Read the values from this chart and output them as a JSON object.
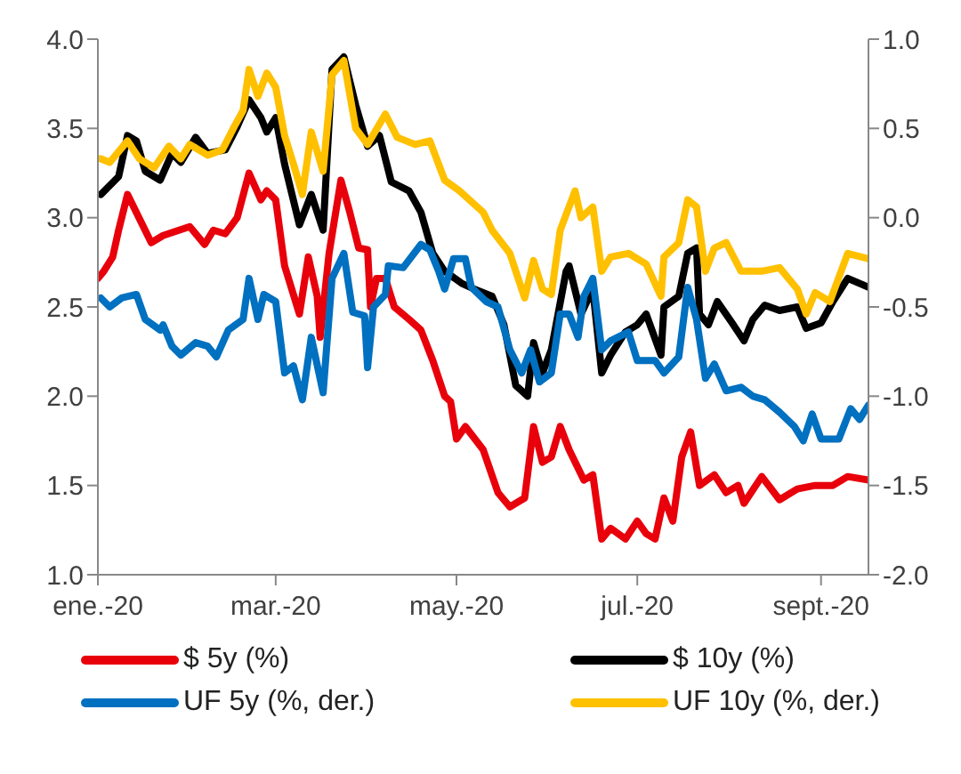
{
  "chart_data": {
    "type": "line",
    "legend": "bottom",
    "marker": "none",
    "xlim": [
      "2020-01-01",
      "2020-09-17"
    ],
    "xticks": [
      {
        "value": "2020-01-01",
        "label": "ene.-20"
      },
      {
        "value": "2020-03-01",
        "label": "mar.-20"
      },
      {
        "value": "2020-05-01",
        "label": "may.-20"
      },
      {
        "value": "2020-07-01",
        "label": "jul.-20"
      },
      {
        "value": "2020-09-01",
        "label": "sept.-20"
      }
    ],
    "ylim": [
      1,
      4
    ],
    "yticks": [
      {
        "value": 1,
        "label": "1.0"
      },
      1.5,
      {
        "value": 2,
        "label": "2.0"
      },
      2.5,
      {
        "value": 3,
        "label": "3.0"
      },
      3.5,
      {
        "value": 4,
        "label": "4.0"
      }
    ],
    "y2lim": [
      -2,
      1
    ],
    "y2ticks": [
      {
        "value": -2,
        "label": "-2.0"
      },
      -1.5,
      {
        "value": -1,
        "label": "-1.0"
      },
      -0.5,
      {
        "value": 0,
        "label": "0.0"
      },
      0.5,
      {
        "value": 1,
        "label": "1.0"
      }
    ],
    "series": [
      {
        "name": "$ 5y (%)",
        "color": "#e8000b",
        "x": [
          "2020-01-01",
          "2020-01-03",
          "2020-01-06",
          "2020-01-08",
          "2020-01-11",
          "2020-01-19",
          "2020-01-23",
          "2020-02-01",
          "2020-02-06",
          "2020-02-09",
          "2020-02-13",
          "2020-02-17",
          "2020-02-21",
          "2020-02-25",
          "2020-02-27",
          "2020-03-01",
          "2020-03-04",
          "2020-03-09",
          "2020-03-12",
          "2020-03-15",
          "2020-03-16",
          "2020-03-19",
          "2020-03-23",
          "2020-03-26",
          "2020-03-29",
          "2020-04-01",
          "2020-04-02",
          "2020-04-04",
          "2020-04-07",
          "2020-04-10",
          "2020-04-15",
          "2020-04-19",
          "2020-04-23",
          "2020-04-27",
          "2020-04-29",
          "2020-05-01",
          "2020-05-04",
          "2020-05-10",
          "2020-05-15",
          "2020-05-19",
          "2020-05-24",
          "2020-05-27",
          "2020-05-30",
          "2020-06-02",
          "2020-06-05",
          "2020-06-08",
          "2020-06-13",
          "2020-06-16",
          "2020-06-19",
          "2020-06-22",
          "2020-06-27",
          "2020-07-01",
          "2020-07-04",
          "2020-07-07",
          "2020-07-10",
          "2020-07-13",
          "2020-07-16",
          "2020-07-19",
          "2020-07-22",
          "2020-07-27",
          "2020-07-31",
          "2020-08-04",
          "2020-08-06",
          "2020-08-12",
          "2020-08-18",
          "2020-08-24",
          "2020-08-30",
          "2020-09-05",
          "2020-09-10",
          "2020-09-17"
        ],
        "values": [
          2.66,
          2.7,
          2.78,
          2.93,
          3.13,
          2.86,
          2.9,
          2.95,
          2.85,
          2.93,
          2.91,
          3.0,
          3.25,
          3.1,
          3.15,
          3.1,
          2.73,
          2.46,
          2.78,
          2.56,
          2.33,
          2.8,
          3.21,
          3.03,
          2.83,
          2.82,
          2.5,
          2.66,
          2.66,
          2.5,
          2.43,
          2.37,
          2.2,
          2.0,
          1.97,
          1.76,
          1.83,
          1.7,
          1.46,
          1.38,
          1.43,
          1.83,
          1.63,
          1.66,
          1.83,
          1.7,
          1.53,
          1.56,
          1.2,
          1.26,
          1.2,
          1.3,
          1.23,
          1.2,
          1.43,
          1.3,
          1.66,
          1.8,
          1.5,
          1.56,
          1.46,
          1.5,
          1.4,
          1.55,
          1.42,
          1.48,
          1.5,
          1.5,
          1.55,
          1.53
        ]
      },
      {
        "name": "$ 10y (%)",
        "color": "#000000",
        "x": [
          "2020-01-02",
          "2020-01-08",
          "2020-01-11",
          "2020-01-14",
          "2020-01-17",
          "2020-01-22",
          "2020-01-26",
          "2020-01-29",
          "2020-02-03",
          "2020-02-07",
          "2020-02-13",
          "2020-02-17",
          "2020-02-21",
          "2020-02-25",
          "2020-02-27",
          "2020-03-01",
          "2020-03-04",
          "2020-03-09",
          "2020-03-13",
          "2020-03-17",
          "2020-03-20",
          "2020-03-24",
          "2020-03-28",
          "2020-04-01",
          "2020-04-05",
          "2020-04-09",
          "2020-04-15",
          "2020-04-19",
          "2020-04-23",
          "2020-04-27",
          "2020-05-03",
          "2020-05-07",
          "2020-05-13",
          "2020-05-17",
          "2020-05-21",
          "2020-05-25",
          "2020-05-27",
          "2020-05-30",
          "2020-06-02",
          "2020-06-07",
          "2020-06-08",
          "2020-06-12",
          "2020-06-16",
          "2020-06-19",
          "2020-06-22",
          "2020-06-27",
          "2020-07-01",
          "2020-07-04",
          "2020-07-09",
          "2020-07-10",
          "2020-07-15",
          "2020-07-18",
          "2020-07-21",
          "2020-07-22",
          "2020-07-25",
          "2020-07-28",
          "2020-08-02",
          "2020-08-06",
          "2020-08-09",
          "2020-08-13",
          "2020-08-18",
          "2020-08-24",
          "2020-08-27",
          "2020-09-01",
          "2020-09-05",
          "2020-09-10",
          "2020-09-17"
        ],
        "values": [
          3.13,
          3.23,
          3.46,
          3.43,
          3.26,
          3.21,
          3.36,
          3.31,
          3.45,
          3.36,
          3.38,
          3.51,
          3.66,
          3.56,
          3.48,
          3.56,
          3.3,
          2.96,
          3.13,
          2.93,
          3.83,
          3.9,
          3.63,
          3.4,
          3.46,
          3.2,
          3.15,
          3.03,
          2.8,
          2.7,
          2.63,
          2.6,
          2.56,
          2.4,
          2.06,
          2.0,
          2.3,
          2.13,
          2.26,
          2.7,
          2.73,
          2.46,
          2.6,
          2.13,
          2.23,
          2.36,
          2.4,
          2.46,
          2.23,
          2.5,
          2.56,
          2.8,
          2.83,
          2.46,
          2.4,
          2.53,
          2.41,
          2.31,
          2.43,
          2.51,
          2.48,
          2.5,
          2.38,
          2.41,
          2.53,
          2.66,
          2.61
        ]
      },
      {
        "name": "UF 5y (%, der.)",
        "color": "#0070c0",
        "axis": "y2",
        "x": [
          "2020-01-02",
          "2020-01-05",
          "2020-01-09",
          "2020-01-14",
          "2020-01-17",
          "2020-01-22",
          "2020-01-23",
          "2020-01-26",
          "2020-01-29",
          "2020-02-03",
          "2020-02-07",
          "2020-02-10",
          "2020-02-14",
          "2020-02-19",
          "2020-02-21",
          "2020-02-24",
          "2020-02-26",
          "2020-03-01",
          "2020-03-04",
          "2020-03-07",
          "2020-03-10",
          "2020-03-13",
          "2020-03-17",
          "2020-03-20",
          "2020-03-24",
          "2020-03-27",
          "2020-03-31",
          "2020-04-01",
          "2020-04-03",
          "2020-04-07",
          "2020-04-08",
          "2020-04-13",
          "2020-04-19",
          "2020-04-22",
          "2020-04-25",
          "2020-04-27",
          "2020-04-30",
          "2020-05-04",
          "2020-05-06",
          "2020-05-11",
          "2020-05-15",
          "2020-05-19",
          "2020-05-23",
          "2020-05-26",
          "2020-05-29",
          "2020-06-02",
          "2020-06-05",
          "2020-06-08",
          "2020-06-11",
          "2020-06-13",
          "2020-06-16",
          "2020-06-19",
          "2020-06-22",
          "2020-06-28",
          "2020-07-01",
          "2020-07-07",
          "2020-07-10",
          "2020-07-15",
          "2020-07-18",
          "2020-07-21",
          "2020-07-24",
          "2020-07-27",
          "2020-07-31",
          "2020-08-05",
          "2020-08-09",
          "2020-08-13",
          "2020-08-18",
          "2020-08-23",
          "2020-08-26",
          "2020-08-29",
          "2020-09-01",
          "2020-09-07",
          "2020-09-11",
          "2020-09-14",
          "2020-09-17"
        ],
        "values": [
          -0.45,
          -0.5,
          -0.45,
          -0.43,
          -0.57,
          -0.63,
          -0.6,
          -0.72,
          -0.77,
          -0.7,
          -0.72,
          -0.78,
          -0.63,
          -0.57,
          -0.34,
          -0.57,
          -0.43,
          -0.47,
          -0.87,
          -0.83,
          -1.02,
          -0.67,
          -0.98,
          -0.34,
          -0.2,
          -0.53,
          -0.55,
          -0.84,
          -0.5,
          -0.43,
          -0.27,
          -0.28,
          -0.15,
          -0.18,
          -0.3,
          -0.4,
          -0.23,
          -0.23,
          -0.39,
          -0.47,
          -0.5,
          -0.74,
          -0.87,
          -0.74,
          -0.92,
          -0.87,
          -0.54,
          -0.54,
          -0.67,
          -0.44,
          -0.34,
          -0.74,
          -0.69,
          -0.64,
          -0.8,
          -0.8,
          -0.87,
          -0.78,
          -0.39,
          -0.57,
          -0.9,
          -0.82,
          -0.97,
          -0.95,
          -1.0,
          -1.02,
          -1.09,
          -1.17,
          -1.25,
          -1.1,
          -1.24,
          -1.24,
          -1.07,
          -1.13,
          -1.05
        ]
      },
      {
        "name": "UF 10y (%, der.)",
        "color": "#ffc000",
        "axis": "y2",
        "x": [
          "2020-01-02",
          "2020-01-05",
          "2020-01-11",
          "2020-01-15",
          "2020-01-20",
          "2020-01-25",
          "2020-01-29",
          "2020-02-01",
          "2020-02-07",
          "2020-02-12",
          "2020-02-16",
          "2020-02-19",
          "2020-02-21",
          "2020-02-24",
          "2020-02-27",
          "2020-03-01",
          "2020-03-04",
          "2020-03-07",
          "2020-03-10",
          "2020-03-13",
          "2020-03-17",
          "2020-03-20",
          "2020-03-24",
          "2020-03-28",
          "2020-04-01",
          "2020-04-07",
          "2020-04-11",
          "2020-04-17",
          "2020-04-22",
          "2020-04-27",
          "2020-05-02",
          "2020-05-10",
          "2020-05-13",
          "2020-05-19",
          "2020-05-24",
          "2020-05-27",
          "2020-05-30",
          "2020-06-02",
          "2020-06-05",
          "2020-06-10",
          "2020-06-12",
          "2020-06-16",
          "2020-06-19",
          "2020-06-22",
          "2020-06-28",
          "2020-07-04",
          "2020-07-09",
          "2020-07-10",
          "2020-07-15",
          "2020-07-18",
          "2020-07-21",
          "2020-07-24",
          "2020-07-27",
          "2020-07-31",
          "2020-08-05",
          "2020-08-12",
          "2020-08-18",
          "2020-08-24",
          "2020-08-27",
          "2020-08-30",
          "2020-09-04",
          "2020-09-10",
          "2020-09-17"
        ],
        "values": [
          0.33,
          0.31,
          0.43,
          0.33,
          0.28,
          0.4,
          0.33,
          0.41,
          0.35,
          0.38,
          0.51,
          0.6,
          0.83,
          0.68,
          0.81,
          0.73,
          0.46,
          0.3,
          0.13,
          0.48,
          0.26,
          0.8,
          0.88,
          0.5,
          0.41,
          0.58,
          0.45,
          0.41,
          0.43,
          0.21,
          0.15,
          0.03,
          -0.07,
          -0.2,
          -0.45,
          -0.24,
          -0.4,
          -0.43,
          -0.07,
          0.15,
          0.0,
          0.06,
          -0.3,
          -0.22,
          -0.2,
          -0.26,
          -0.44,
          -0.22,
          -0.14,
          0.1,
          0.06,
          -0.3,
          -0.17,
          -0.14,
          -0.3,
          -0.3,
          -0.28,
          -0.4,
          -0.54,
          -0.42,
          -0.47,
          -0.2,
          -0.23
        ]
      }
    ]
  }
}
